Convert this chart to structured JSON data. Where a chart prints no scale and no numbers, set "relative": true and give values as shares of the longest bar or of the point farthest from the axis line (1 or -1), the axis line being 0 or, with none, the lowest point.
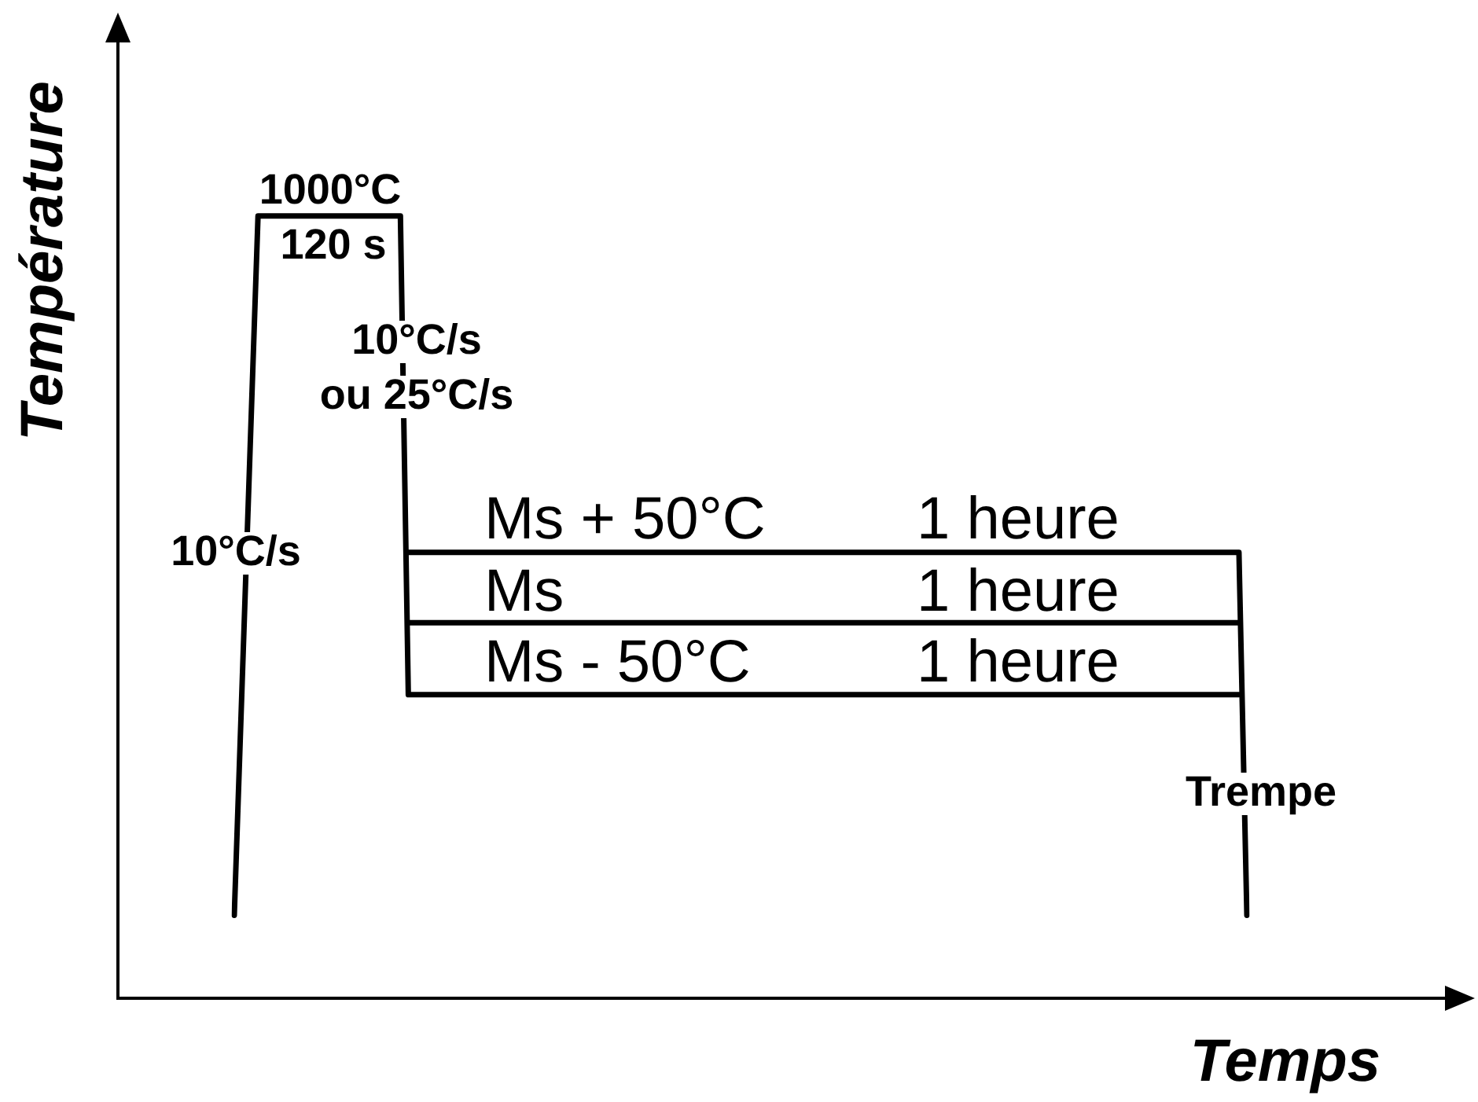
{
  "chart_data": {
    "type": "line",
    "relative": true,
    "xlabel": "Temps",
    "ylabel": "Température",
    "categories": [
      null,
      null,
      null,
      null,
      null,
      null,
      null,
      null,
      null,
      null,
      null,
      null,
      null,
      null,
      null,
      null,
      null,
      null,
      null,
      null,
      null,
      null,
      null,
      null,
      null,
      null,
      null,
      null,
      null,
      null,
      null,
      null,
      null,
      null,
      null,
      null,
      null,
      null,
      null,
      null,
      null,
      null,
      null,
      null,
      null,
      null,
      null,
      null,
      null,
      null,
      null,
      null,
      null,
      null,
      null,
      null,
      null,
      null,
      null,
      null,
      null,
      null,
      null,
      null,
      null,
      null,
      null,
      null,
      null,
      null,
      null,
      null,
      null,
      null,
      null,
      null,
      null,
      null,
      null,
      null,
      null,
      null,
      null,
      null,
      null,
      null,
      null,
      null,
      null,
      null,
      null,
      null,
      null,
      null,
      null,
      null,
      null,
      null,
      null,
      null,
      null,
      null,
      null,
      null,
      null,
      null,
      null,
      null,
      null,
      null,
      null,
      null,
      null,
      null,
      null,
      null,
      null,
      null,
      null,
      null,
      null,
      null,
      null,
      null,
      null,
      null,
      null,
      null,
      null
    ],
    "series": [
      {
        "color": "#000000",
        "values": [
          0.106,
          0.404,
          0.702,
          1,
          1,
          1,
          1,
          1,
          1,
          1,
          1,
          1,
          1,
          1,
          1,
          1,
          1,
          1,
          1,
          1,
          1,
          1,
          0.388,
          0.388,
          0.388,
          0.388,
          0.388,
          0.388,
          0.388,
          0.388,
          0.388,
          0.388,
          0.388,
          0.388,
          0.388,
          0.388,
          0.388,
          0.388,
          0.388,
          0.388,
          0.388,
          0.388,
          0.388,
          0.388,
          0.388,
          0.388,
          0.388,
          0.388,
          0.388,
          0.388,
          0.388,
          0.388,
          0.388,
          0.388,
          0.388,
          0.388,
          0.388,
          0.388,
          0.388,
          0.388,
          0.388,
          0.388,
          0.388,
          0.388,
          0.388,
          0.388,
          0.388,
          0.388,
          0.388,
          0.388,
          0.388,
          0.388,
          0.388,
          0.388,
          0.388,
          0.388,
          0.388,
          0.388,
          0.388,
          0.388,
          0.388,
          0.388,
          0.388,
          0.388,
          0.388,
          0.388,
          0.388,
          0.388,
          0.388,
          0.388,
          0.388,
          0.388,
          0.388,
          0.388,
          0.388,
          0.388,
          0.388,
          0.388,
          0.388,
          0.388,
          0.388,
          0.388,
          0.388,
          0.388,
          0.388,
          0.388,
          0.388,
          0.388,
          0.388,
          0.388,
          0.388,
          0.388,
          0.388,
          0.388,
          0.388,
          0.388,
          0.388,
          0.388,
          0.388,
          0.388,
          0.388,
          0.388,
          0.388,
          0.388,
          0.388,
          0.388,
          0.388,
          0.388,
          null
        ]
      },
      {
        "color": "#000000",
        "values": [
          null,
          null,
          null,
          null,
          null,
          null,
          null,
          null,
          null,
          null,
          null,
          null,
          null,
          null,
          null,
          null,
          null,
          null,
          null,
          null,
          null,
          null,
          0.57,
          0.57,
          0.57,
          0.57,
          0.57,
          0.57,
          0.57,
          0.57,
          0.57,
          0.57,
          0.57,
          0.57,
          0.57,
          0.57,
          0.57,
          0.57,
          0.57,
          0.57,
          0.57,
          0.57,
          0.57,
          0.57,
          0.57,
          0.57,
          0.57,
          0.57,
          0.57,
          0.57,
          0.57,
          0.57,
          0.57,
          0.57,
          0.57,
          0.57,
          0.57,
          0.57,
          0.57,
          0.57,
          0.57,
          0.57,
          0.57,
          0.57,
          0.57,
          0.57,
          0.57,
          0.57,
          0.57,
          0.57,
          0.57,
          0.57,
          0.57,
          0.57,
          0.57,
          0.57,
          0.57,
          0.57,
          0.57,
          0.57,
          0.57,
          0.57,
          0.57,
          0.57,
          0.57,
          0.57,
          0.57,
          0.57,
          0.57,
          0.57,
          0.57,
          0.57,
          0.57,
          0.57,
          0.57,
          0.57,
          0.57,
          0.57,
          0.57,
          0.57,
          0.57,
          0.57,
          0.57,
          0.57,
          0.57,
          0.57,
          0.57,
          0.57,
          0.57,
          0.57,
          0.57,
          0.57,
          0.57,
          0.57,
          0.57,
          0.57,
          0.57,
          0.57,
          0.57,
          0.57,
          0.57,
          0.57,
          0.57,
          0.57,
          0.57,
          0.57,
          0.57,
          0.57,
          0.106
        ]
      },
      {
        "color": "#000000",
        "values": [
          null,
          null,
          null,
          null,
          null,
          null,
          null,
          null,
          null,
          null,
          null,
          null,
          null,
          null,
          null,
          null,
          null,
          null,
          null,
          null,
          null,
          null,
          0.48,
          0.48,
          0.48,
          0.48,
          0.48,
          0.48,
          0.48,
          0.48,
          0.48,
          0.48,
          0.48,
          0.48,
          0.48,
          0.48,
          0.48,
          0.48,
          0.48,
          0.48,
          0.48,
          0.48,
          0.48,
          0.48,
          0.48,
          0.48,
          0.48,
          0.48,
          0.48,
          0.48,
          0.48,
          0.48,
          0.48,
          0.48,
          0.48,
          0.48,
          0.48,
          0.48,
          0.48,
          0.48,
          0.48,
          0.48,
          0.48,
          0.48,
          0.48,
          0.48,
          0.48,
          0.48,
          0.48,
          0.48,
          0.48,
          0.48,
          0.48,
          0.48,
          0.48,
          0.48,
          0.48,
          0.48,
          0.48,
          0.48,
          0.48,
          0.48,
          0.48,
          0.48,
          0.48,
          0.48,
          0.48,
          0.48,
          0.48,
          0.48,
          0.48,
          0.48,
          0.48,
          0.48,
          0.48,
          0.48,
          0.48,
          0.48,
          0.48,
          0.48,
          0.48,
          0.48,
          0.48,
          0.48,
          0.48,
          0.48,
          0.48,
          0.48,
          0.48,
          0.48,
          0.48,
          0.48,
          0.48,
          0.48,
          0.48,
          0.48,
          0.48,
          0.48,
          0.48,
          0.48,
          0.48,
          0.48,
          0.48,
          0.48,
          0.48,
          0.48,
          0.48,
          0.48,
          null
        ]
      }
    ],
    "annotations": [
      "Ms + 50°C",
      "1 heure",
      "Ms",
      "1 heure",
      "Ms - 50°C",
      "1 heure",
      "1000°C",
      "120 s",
      "10°C/s\nou 25°C/s",
      "10°C/s",
      "Trempe"
    ],
    "marker": "none",
    "grid": false,
    "legend": false
  }
}
